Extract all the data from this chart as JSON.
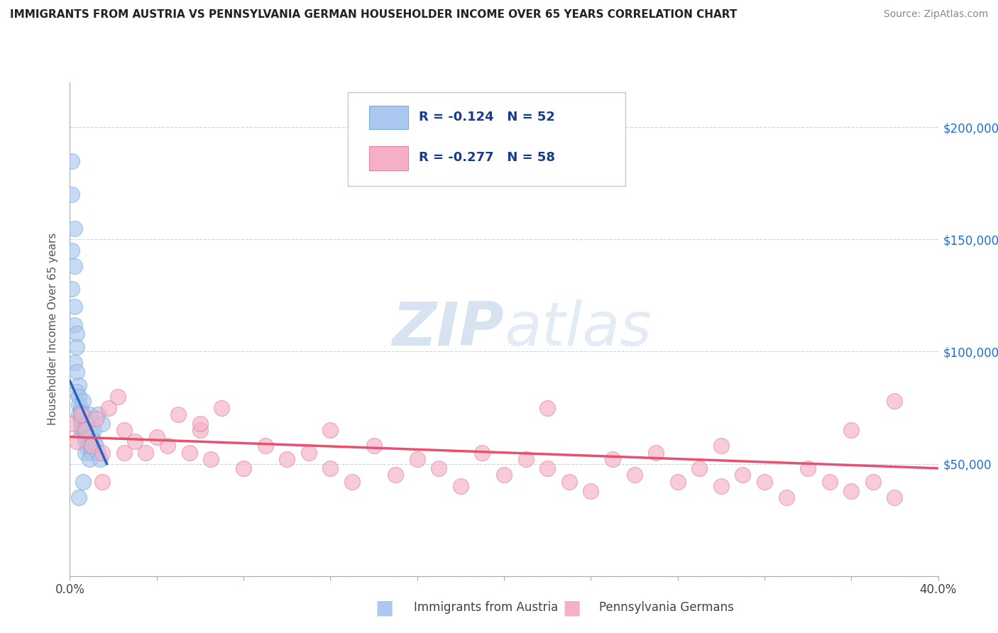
{
  "title": "IMMIGRANTS FROM AUSTRIA VS PENNSYLVANIA GERMAN HOUSEHOLDER INCOME OVER 65 YEARS CORRELATION CHART",
  "source": "Source: ZipAtlas.com",
  "ylabel": "Householder Income Over 65 years",
  "xlim": [
    0.0,
    0.4
  ],
  "ylim": [
    0,
    220000
  ],
  "yticks": [
    0,
    50000,
    100000,
    150000,
    200000
  ],
  "yticklabels": [
    "",
    "$50,000",
    "$100,000",
    "$150,000",
    "$200,000"
  ],
  "xticks": [
    0.0,
    0.04,
    0.08,
    0.12,
    0.16,
    0.2,
    0.24,
    0.28,
    0.32,
    0.36,
    0.4
  ],
  "xticklabels": [
    "0.0%",
    "",
    "",
    "",
    "",
    "",
    "",
    "",
    "",
    "",
    "40.0%"
  ],
  "legend1_R": "-0.124",
  "legend1_N": "52",
  "legend2_R": "-0.277",
  "legend2_N": "58",
  "austria_color": "#aac8f0",
  "austria_edge": "#7aadd4",
  "pennsylvania_color": "#f5b0c5",
  "pennsylvania_edge": "#e880a0",
  "austria_line_color": "#3060c0",
  "pennsylvania_line_color": "#e85070",
  "dashed_line_color": "#90a8c8",
  "background_color": "#ffffff",
  "austria_scatter_x": [
    0.001,
    0.001,
    0.002,
    0.001,
    0.002,
    0.001,
    0.002,
    0.002,
    0.003,
    0.003,
    0.002,
    0.003,
    0.004,
    0.003,
    0.004,
    0.004,
    0.005,
    0.004,
    0.005,
    0.005,
    0.006,
    0.005,
    0.006,
    0.006,
    0.005,
    0.006,
    0.007,
    0.006,
    0.007,
    0.007,
    0.008,
    0.007,
    0.008,
    0.008,
    0.007,
    0.009,
    0.008,
    0.009,
    0.01,
    0.009,
    0.01,
    0.009,
    0.011,
    0.01,
    0.011,
    0.012,
    0.013,
    0.014,
    0.013,
    0.015,
    0.006,
    0.004
  ],
  "austria_scatter_y": [
    185000,
    170000,
    155000,
    145000,
    138000,
    128000,
    120000,
    112000,
    108000,
    102000,
    95000,
    91000,
    85000,
    82000,
    80000,
    76000,
    75000,
    72000,
    70000,
    68000,
    78000,
    73000,
    70000,
    66000,
    65000,
    72000,
    68000,
    64000,
    62000,
    65000,
    63000,
    60000,
    68000,
    57000,
    55000,
    60000,
    62000,
    58000,
    55000,
    52000,
    58000,
    72000,
    65000,
    62000,
    60000,
    58000,
    55000,
    52000,
    72000,
    68000,
    42000,
    35000
  ],
  "pennsylvania_scatter_x": [
    0.001,
    0.003,
    0.005,
    0.007,
    0.01,
    0.012,
    0.015,
    0.018,
    0.022,
    0.025,
    0.03,
    0.035,
    0.04,
    0.045,
    0.05,
    0.055,
    0.06,
    0.065,
    0.07,
    0.08,
    0.09,
    0.1,
    0.11,
    0.12,
    0.13,
    0.14,
    0.15,
    0.16,
    0.17,
    0.18,
    0.19,
    0.2,
    0.21,
    0.22,
    0.23,
    0.24,
    0.25,
    0.26,
    0.27,
    0.28,
    0.29,
    0.3,
    0.31,
    0.32,
    0.33,
    0.34,
    0.35,
    0.36,
    0.37,
    0.38,
    0.015,
    0.025,
    0.06,
    0.12,
    0.22,
    0.3,
    0.36,
    0.38
  ],
  "pennsylvania_scatter_y": [
    68000,
    60000,
    72000,
    65000,
    58000,
    70000,
    55000,
    75000,
    80000,
    65000,
    60000,
    55000,
    62000,
    58000,
    72000,
    55000,
    65000,
    52000,
    75000,
    48000,
    58000,
    52000,
    55000,
    48000,
    42000,
    58000,
    45000,
    52000,
    48000,
    40000,
    55000,
    45000,
    52000,
    48000,
    42000,
    38000,
    52000,
    45000,
    55000,
    42000,
    48000,
    40000,
    45000,
    42000,
    35000,
    48000,
    42000,
    38000,
    42000,
    35000,
    42000,
    55000,
    68000,
    65000,
    75000,
    58000,
    65000,
    78000
  ]
}
